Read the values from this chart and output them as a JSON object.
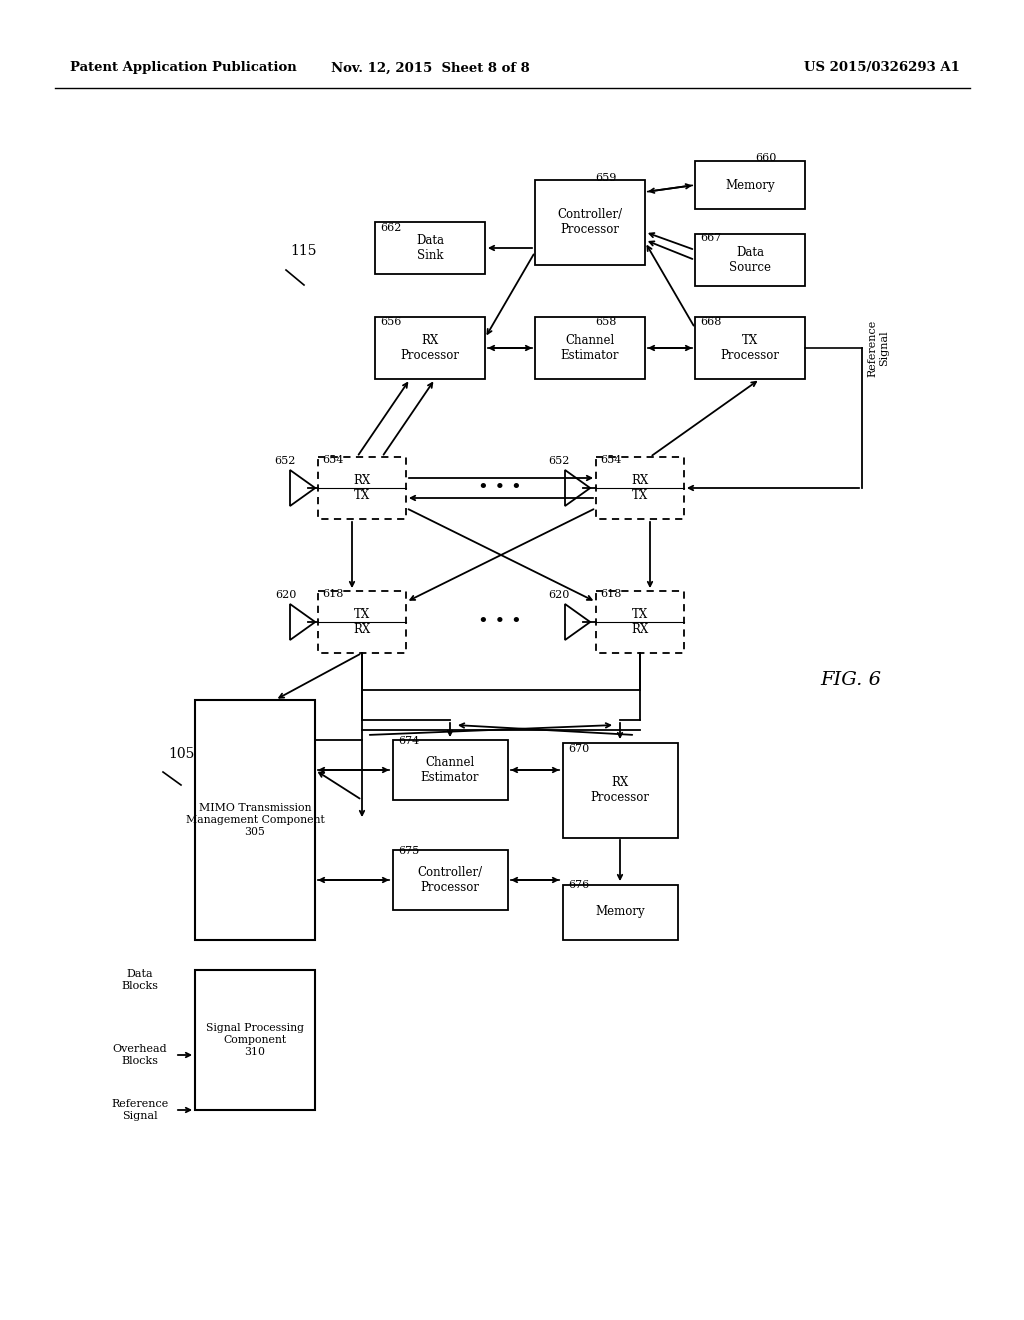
{
  "header_left": "Patent Application Publication",
  "header_mid": "Nov. 12, 2015  Sheet 8 of 8",
  "header_right": "US 2015/0326293 A1",
  "fig_label": "FIG. 6",
  "bg_color": "#ffffff",
  "line_color": "#000000",
  "font_color": "#000000"
}
